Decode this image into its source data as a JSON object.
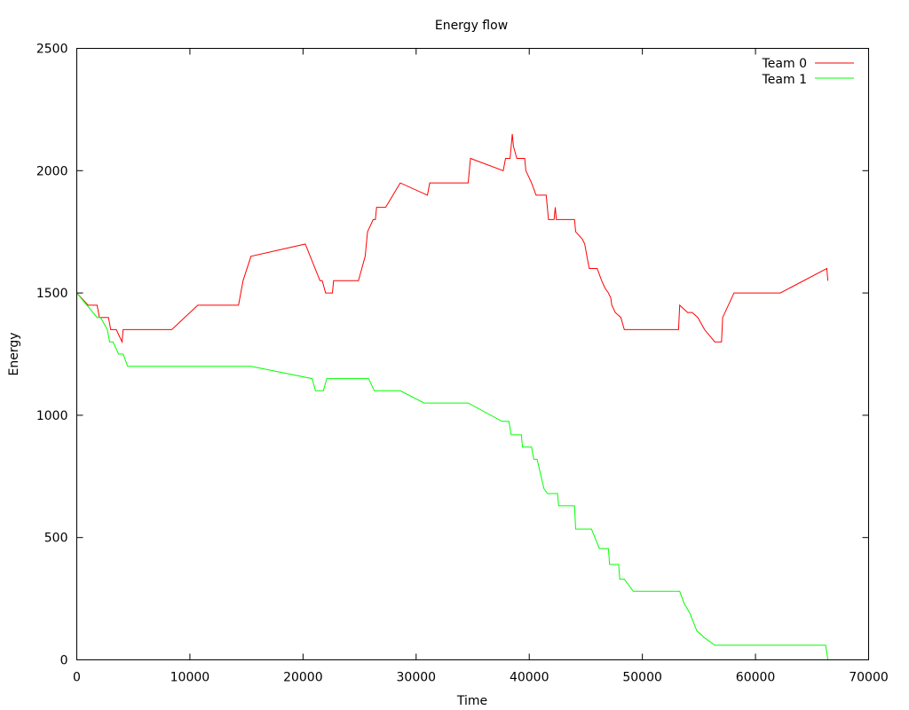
{
  "chart_data": {
    "type": "line",
    "title": "Energy flow",
    "xlabel": "Time",
    "ylabel": "Energy",
    "xlim": [
      0,
      70000
    ],
    "ylim": [
      0,
      2500
    ],
    "xticks": [
      "0",
      "10000",
      "20000",
      "30000",
      "40000",
      "50000",
      "60000",
      "70000"
    ],
    "yticks": [
      "0",
      "500",
      "1000",
      "1500",
      "2000",
      "2500"
    ],
    "grid": false,
    "legend_position": "top-right",
    "series": [
      {
        "name": "Team 0",
        "color": "#ff0000",
        "x": [
          0,
          1000,
          1800,
          2000,
          2800,
          3000,
          3500,
          3700,
          4000,
          4100,
          4300,
          8400,
          10700,
          14300,
          14700,
          15400,
          20200,
          21500,
          21700,
          22000,
          22100,
          22600,
          22700,
          24900,
          25500,
          25700,
          26200,
          26400,
          26500,
          27300,
          28600,
          31000,
          31200,
          34600,
          34800,
          37700,
          37900,
          38300,
          38500,
          38600,
          38900,
          39200,
          39600,
          39700,
          40200,
          40600,
          40800,
          41500,
          41700,
          42200,
          42300,
          42400,
          42600,
          42700,
          43300,
          44000,
          44100,
          44700,
          44900,
          45100,
          45300,
          45600,
          46000,
          46400,
          46700,
          47000,
          47200,
          47300,
          47600,
          48100,
          48400,
          53200,
          53300,
          54000,
          54400,
          54900,
          55500,
          56400,
          57000,
          57100,
          58100,
          58400,
          62200,
          66300,
          66400
        ],
        "y": [
          1500,
          1450,
          1450,
          1400,
          1400,
          1350,
          1350,
          1330,
          1300,
          1350,
          1350,
          1350,
          1450,
          1450,
          1550,
          1650,
          1700,
          1550,
          1550,
          1500,
          1500,
          1500,
          1550,
          1550,
          1650,
          1750,
          1800,
          1800,
          1850,
          1850,
          1950,
          1900,
          1950,
          1950,
          2050,
          2000,
          2050,
          2050,
          2150,
          2100,
          2050,
          2050,
          2050,
          2000,
          1950,
          1900,
          1900,
          1900,
          1800,
          1800,
          1850,
          1800,
          1800,
          1800,
          1800,
          1800,
          1750,
          1720,
          1700,
          1650,
          1600,
          1600,
          1600,
          1550,
          1520,
          1500,
          1480,
          1450,
          1420,
          1400,
          1350,
          1350,
          1450,
          1420,
          1420,
          1400,
          1350,
          1300,
          1300,
          1400,
          1500,
          1500,
          1500,
          1600,
          1550
        ]
      },
      {
        "name": "Team 1",
        "color": "#00ff00",
        "x": [
          0,
          1800,
          2100,
          2700,
          2900,
          3200,
          3700,
          4100,
          4500,
          15400,
          20800,
          21100,
          21800,
          22100,
          25800,
          26300,
          28600,
          30700,
          34600,
          37600,
          38200,
          38400,
          39300,
          39400,
          40200,
          40400,
          40700,
          41200,
          41300,
          41600,
          42500,
          42600,
          44000,
          44100,
          45500,
          46200,
          47000,
          47100,
          47900,
          48000,
          48400,
          49200,
          53300,
          53700,
          54200,
          54800,
          55500,
          56400,
          66200,
          66400
        ],
        "y": [
          1500,
          1400,
          1400,
          1350,
          1300,
          1300,
          1250,
          1250,
          1200,
          1200,
          1150,
          1100,
          1100,
          1150,
          1150,
          1100,
          1100,
          1050,
          1050,
          975,
          975,
          920,
          920,
          870,
          870,
          820,
          820,
          720,
          700,
          680,
          680,
          630,
          630,
          535,
          535,
          455,
          455,
          390,
          390,
          330,
          330,
          280,
          280,
          230,
          190,
          120,
          90,
          60,
          60,
          0
        ]
      }
    ]
  }
}
